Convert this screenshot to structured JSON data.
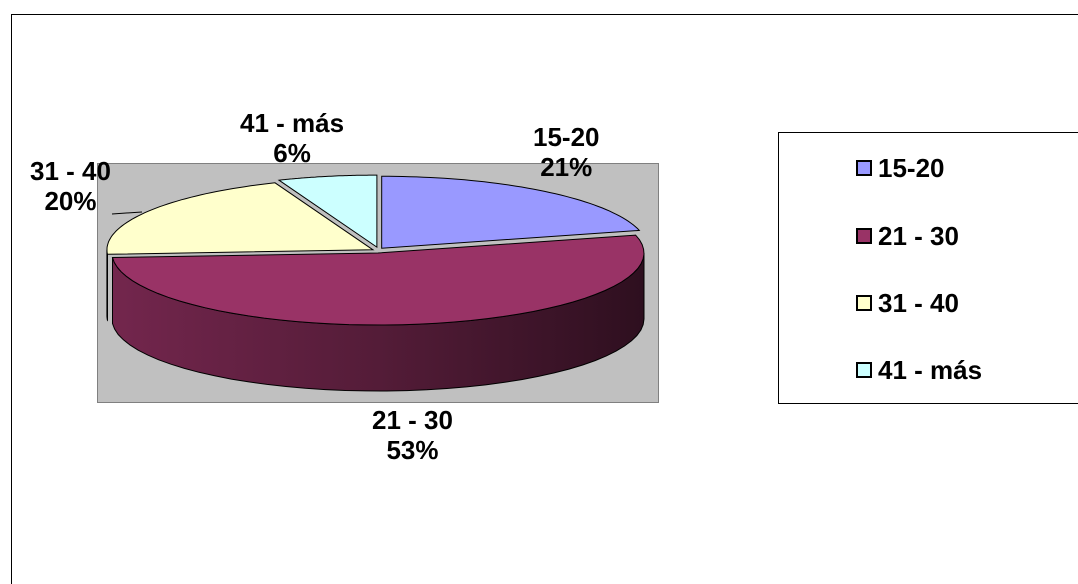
{
  "chart_data": {
    "type": "pie",
    "categories": [
      "15-20",
      "21 - 30",
      "31 - 40",
      "41 - más"
    ],
    "values": [
      21,
      53,
      20,
      6
    ],
    "unit": "%",
    "colors": [
      "#9999ff",
      "#993366",
      "#ffffcc",
      "#ccffff"
    ],
    "legend_position": "right",
    "data_labels": [
      {
        "category": "15-20",
        "percent": "21%"
      },
      {
        "category": "21 - 30",
        "percent": "53%"
      },
      {
        "category": "31 - 40",
        "percent": "20%"
      },
      {
        "category": "41 - más",
        "percent": "6%"
      }
    ]
  }
}
